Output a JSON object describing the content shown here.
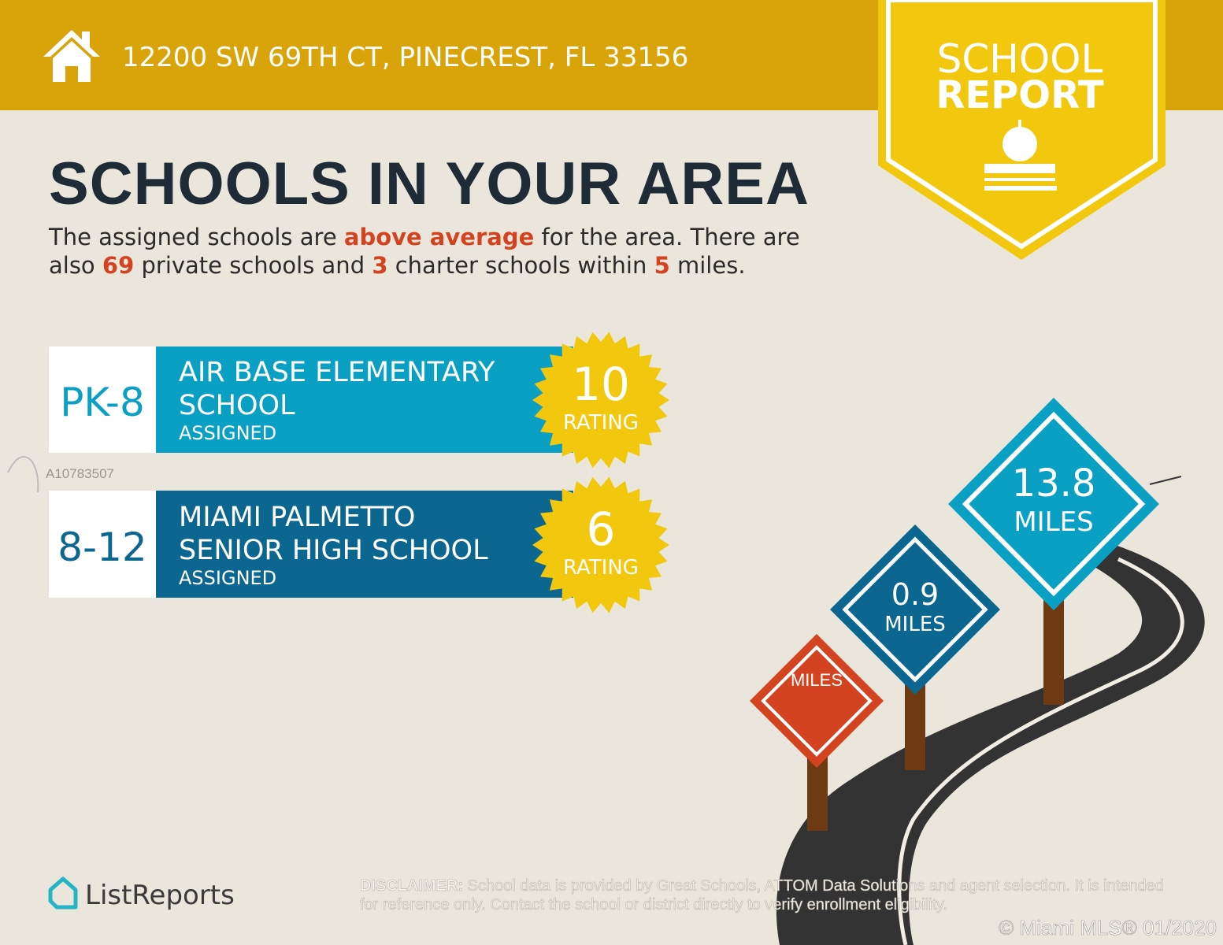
{
  "header": {
    "address": "12200 SW 69TH CT, PINECREST, FL 33156"
  },
  "badge": {
    "line1": "SCHOOL",
    "line2": "REPORT"
  },
  "title": "SCHOOLS IN YOUR AREA",
  "summary": [
    "The assigned schools are ",
    "above average",
    " for the area. There are also ",
    "69",
    " private schools and ",
    "3",
    " charter schools within ",
    "5",
    " miles."
  ],
  "schools": [
    {
      "grades": "PK-8",
      "name_lines": [
        "AIR BASE ELEMENTARY",
        "SCHOOL"
      ],
      "status": "ASSIGNED",
      "rating": "10",
      "rating_label": "RATING"
    },
    {
      "grades": "8-12",
      "name_lines": [
        "MIAMI PALMETTO",
        "SENIOR HIGH SCHOOL"
      ],
      "status": "ASSIGNED",
      "rating": "6",
      "rating_label": "RATING"
    }
  ],
  "watermark_id": "A10783507",
  "signs": [
    {
      "distance": "13.8",
      "unit": "MILES"
    },
    {
      "distance": "0.9",
      "unit": "MILES"
    },
    {
      "unit": "MILES"
    }
  ],
  "brand": "ListReports",
  "disclaimer": {
    "label": "DISCLAIMER:",
    "text": " School data is provided by Great Schools, ATTOM Data Solutions and agent selection. It is intended for reference only. Contact the school or district directly to verify enrollment eligibility."
  },
  "copyright": "© Miami MLS® 01/2020"
}
